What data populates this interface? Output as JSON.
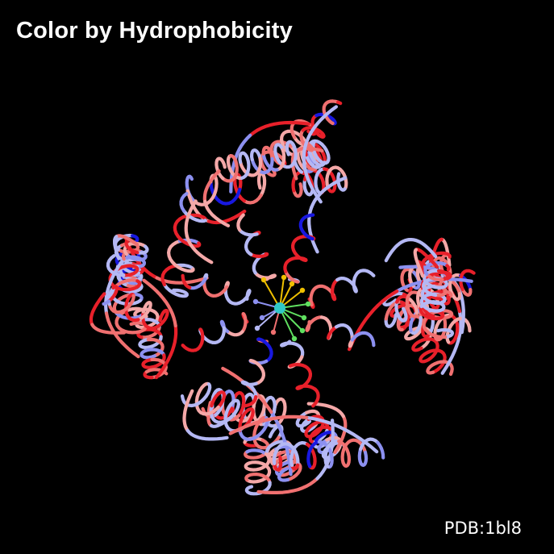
{
  "title": "Color by Hydrophobicity",
  "pdb_label": "PDB:1bl8",
  "colors": {
    "background": "#000000",
    "hydrophobic_strong": "#e8202a",
    "hydrophobic_mid": "#f07070",
    "hydrophobic_light": "#f4a8a8",
    "hydrophilic_light": "#b4b8f4",
    "hydrophilic_mid": "#8c90f0",
    "hydrophilic_strong": "#1818e0",
    "ion_center": "#30c8c8",
    "ligand_yellow": "#f0c000",
    "ligand_green": "#60e060"
  }
}
